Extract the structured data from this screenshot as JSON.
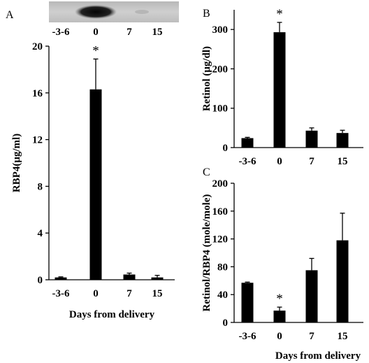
{
  "chart_data": [
    {
      "panel": "A",
      "type": "bar",
      "categories": [
        "-3-6",
        "0",
        "7",
        "15"
      ],
      "values": [
        0.2,
        16.3,
        0.45,
        0.2
      ],
      "errors": [
        0.05,
        2.6,
        0.12,
        0.18
      ],
      "ylabel": "RBP4(μg/ml)",
      "xlabel": "Days from delivery",
      "ylim": [
        0,
        20
      ],
      "yticks": [
        0,
        4,
        8,
        12,
        16,
        20
      ],
      "significance": [
        "",
        "*",
        "",
        ""
      ],
      "blot_categories": [
        "-3-6",
        "0",
        "7",
        "15"
      ],
      "bar_color": "#000000"
    },
    {
      "panel": "B",
      "type": "bar",
      "categories": [
        "-3-6",
        "0",
        "7",
        "15"
      ],
      "values": [
        24,
        293,
        43,
        37
      ],
      "errors": [
        2,
        25,
        7,
        7
      ],
      "ylabel": "Retinol (μg/dl)",
      "xlabel": "",
      "ylim": [
        0,
        350
      ],
      "yticks": [
        0,
        100,
        200,
        300
      ],
      "significance": [
        "",
        "*",
        "",
        ""
      ],
      "bar_color": "#000000"
    },
    {
      "panel": "C",
      "type": "bar",
      "categories": [
        "-3-6",
        "0",
        "7",
        "15"
      ],
      "values": [
        57,
        17,
        75,
        118
      ],
      "errors": [
        1,
        5,
        17,
        39
      ],
      "ylabel": "Retinol/RBP4 (mole/mole)",
      "xlabel": "Days from delivery",
      "ylim": [
        0,
        200
      ],
      "yticks": [
        0,
        40,
        80,
        120,
        160,
        200
      ],
      "significance": [
        "",
        "*",
        "",
        ""
      ],
      "bar_color": "#000000"
    }
  ]
}
